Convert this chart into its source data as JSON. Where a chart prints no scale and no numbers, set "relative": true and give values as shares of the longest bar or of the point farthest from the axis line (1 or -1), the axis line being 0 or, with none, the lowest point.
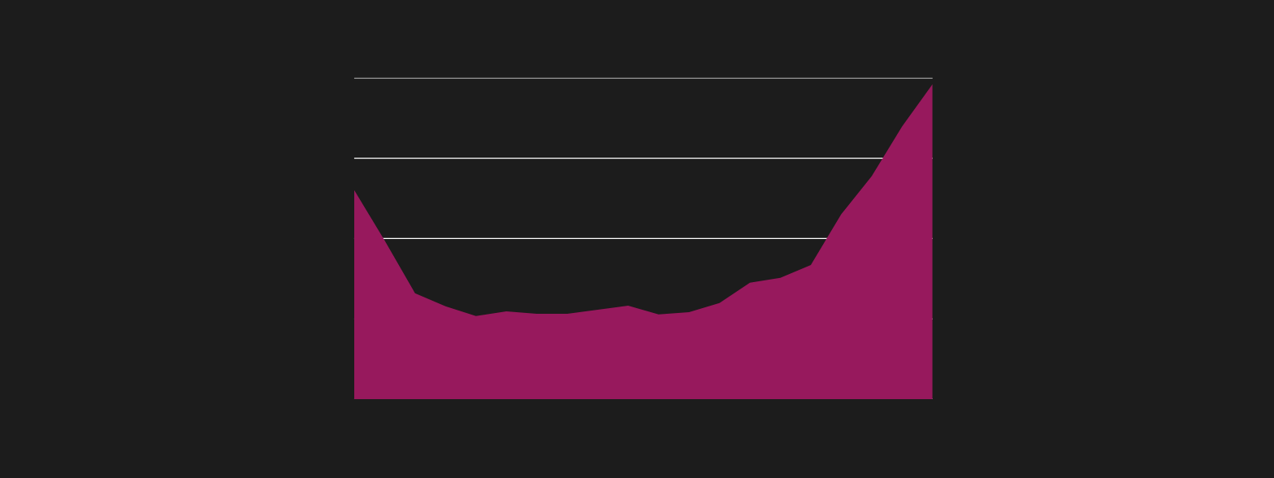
{
  "chart_data": {
    "type": "area",
    "relative": true,
    "categories": [
      null,
      null,
      null,
      null,
      null,
      null,
      null,
      null,
      null,
      null,
      null,
      null,
      null,
      null,
      null,
      null,
      null,
      null,
      null,
      null
    ],
    "series": [
      {
        "color": "#97195d",
        "values": [
          0.664,
          0.504,
          0.336,
          0.295,
          0.264,
          0.279,
          0.271,
          0.271,
          0.284,
          0.297,
          0.269,
          0.276,
          0.305,
          0.37,
          0.385,
          0.426,
          0.587,
          0.708,
          0.866,
          1
        ]
      }
    ],
    "grid": "y",
    "legend": false
  }
}
